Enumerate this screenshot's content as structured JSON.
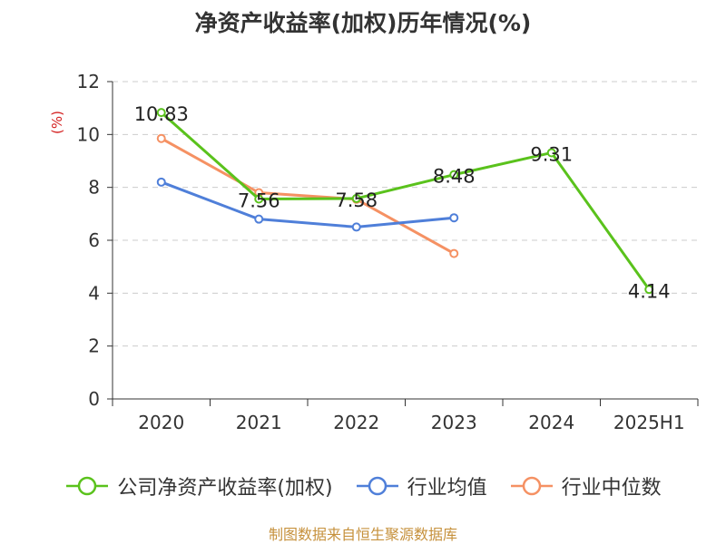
{
  "chart_data": {
    "type": "line",
    "title": "净资产收益率(加权)历年情况(%)",
    "ylabel": "(%)",
    "categories": [
      "2020",
      "2021",
      "2022",
      "2023",
      "2024",
      "2025H1"
    ],
    "ylim": [
      0,
      12
    ],
    "yticks": [
      0,
      2,
      4,
      6,
      8,
      10,
      12
    ],
    "grid": true,
    "legend_position": "bottom",
    "series": [
      {
        "name": "公司净资产收益率(加权)",
        "color": "#5ac21c",
        "values": [
          10.83,
          7.56,
          7.58,
          8.48,
          9.31,
          4.14
        ],
        "labels": [
          "10.83",
          "7.56",
          "7.58",
          "8.48",
          "9.31",
          "4.14"
        ]
      },
      {
        "name": "行业均值",
        "color": "#4f7fd9",
        "values": [
          8.2,
          6.8,
          6.5,
          6.85,
          null,
          null
        ]
      },
      {
        "name": "行业中位数",
        "color": "#f59163",
        "values": [
          9.85,
          7.8,
          7.55,
          5.5,
          null,
          null
        ]
      }
    ]
  },
  "source": "制图数据来自恒生聚源数据库"
}
